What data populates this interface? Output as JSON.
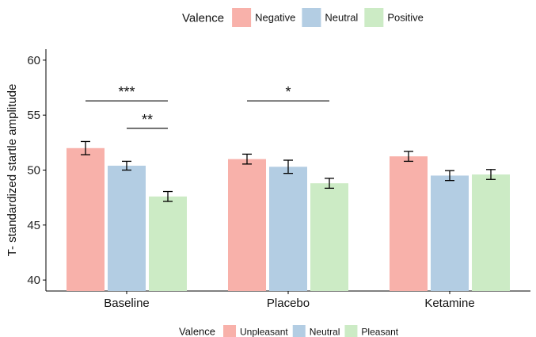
{
  "chart_data": {
    "type": "bar",
    "ylabel": "T- standardized  startle amplitude",
    "xlabel": "",
    "ylim": [
      39,
      61
    ],
    "yticks": [
      40,
      45,
      50,
      55,
      60
    ],
    "categories": [
      "Baseline",
      "Placebo",
      "Ketamine"
    ],
    "series": [
      {
        "name": "Negative",
        "color": "#F8B1AA",
        "values": [
          52.0,
          51.0,
          51.25
        ],
        "errors": [
          0.6,
          0.45,
          0.45
        ]
      },
      {
        "name": "Neutral",
        "color": "#B3CDE3",
        "values": [
          50.4,
          50.3,
          49.5
        ],
        "errors": [
          0.4,
          0.6,
          0.45
        ]
      },
      {
        "name": "Positive",
        "color": "#CCEBC5",
        "values": [
          47.6,
          48.8,
          49.6
        ],
        "errors": [
          0.45,
          0.45,
          0.45
        ]
      }
    ],
    "legend_top": {
      "title": "Valence",
      "entries": [
        "Negative",
        "Neutral",
        "Positive"
      ],
      "position": "top"
    },
    "legend_bottom": {
      "title": "Valence",
      "entries": [
        "Unpleasant",
        "Neutral",
        "Pleasant"
      ],
      "position": "bottom"
    },
    "significance": [
      {
        "category": 0,
        "from_series": 0,
        "to_series": 2,
        "label": "***",
        "y": 56.3
      },
      {
        "category": 0,
        "from_series": 1,
        "to_series": 2,
        "label": "**",
        "y": 53.8
      },
      {
        "category": 1,
        "from_series": 0,
        "to_series": 2,
        "label": "*",
        "y": 56.3
      }
    ],
    "grid": false
  }
}
